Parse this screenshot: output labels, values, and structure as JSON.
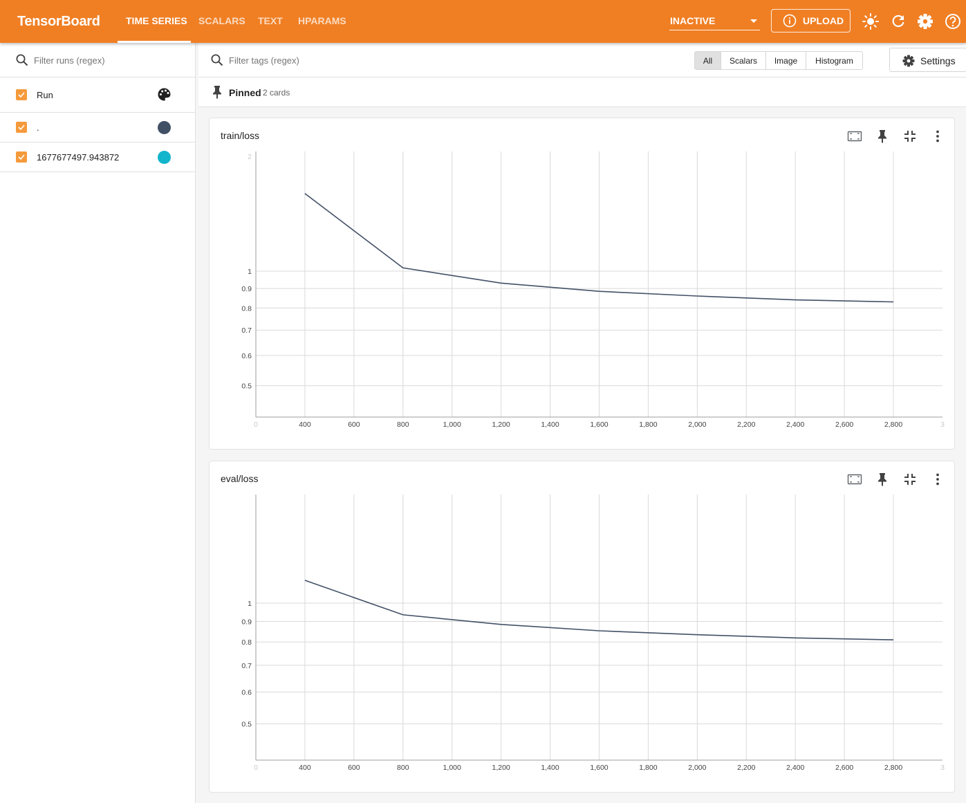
{
  "app": {
    "brand": "TensorBoard",
    "tabs": [
      {
        "label": "TIME SERIES",
        "active": true
      },
      {
        "label": "SCALARS",
        "active": false
      },
      {
        "label": "TEXT",
        "active": false
      },
      {
        "label": "HPARAMS",
        "active": false
      }
    ],
    "status_select": "INACTIVE",
    "upload_label": "UPLOAD",
    "header_icons": [
      "brightness-icon",
      "refresh-icon",
      "settings-gear-icon",
      "help-icon"
    ],
    "colors": {
      "header": "#f07f24",
      "checkbox": "#f59a3c"
    }
  },
  "sidebar": {
    "filter_placeholder": "Filter runs (regex)",
    "header_label": "Run",
    "runs": [
      {
        "name": ".",
        "color": "#425066",
        "checked": true
      },
      {
        "name": "1677677497.943872",
        "color": "#12b5cb",
        "checked": true
      }
    ]
  },
  "toolbar": {
    "filter_placeholder": "Filter tags (regex)",
    "type_filters": [
      "All",
      "Scalars",
      "Image",
      "Histogram"
    ],
    "selected_filter": "All",
    "settings_label": "Settings"
  },
  "pinned": {
    "label": "Pinned",
    "count_text": "2 cards"
  },
  "chart_data": [
    {
      "type": "line",
      "title": "train/loss",
      "x_scale": "linear",
      "y_scale": "log",
      "x_ticks": [
        "0",
        "400",
        "600",
        "800",
        "1,000",
        "1,200",
        "1,400",
        "1,600",
        "1,800",
        "2,000",
        "2,200",
        "2,400",
        "2,600",
        "2,800",
        "3"
      ],
      "y_ticks": [
        "2",
        "1",
        "0.9",
        "0.8",
        "0.7",
        "0.6",
        "0.5"
      ],
      "xlim": [
        200,
        3000
      ],
      "ylim": [
        0.42,
        2
      ],
      "grid": true,
      "series": [
        {
          "color": "#425066",
          "x": [
            400,
            800,
            1200,
            1600,
            2000,
            2400,
            2800
          ],
          "y": [
            1.6,
            1.02,
            0.93,
            0.885,
            0.86,
            0.84,
            0.83
          ]
        }
      ]
    },
    {
      "type": "line",
      "title": "eval/loss",
      "x_scale": "linear",
      "y_scale": "log",
      "x_ticks": [
        "0",
        "400",
        "600",
        "800",
        "1,000",
        "1,200",
        "1,400",
        "1,600",
        "1,800",
        "2,000",
        "2,200",
        "2,400",
        "2,600",
        "2,800",
        "3"
      ],
      "y_ticks": [
        "1",
        "0.9",
        "0.8",
        "0.7",
        "0.6",
        "0.5"
      ],
      "xlim": [
        200,
        3000
      ],
      "ylim": [
        0.42,
        2
      ],
      "grid": true,
      "series": [
        {
          "color": "#425066",
          "x": [
            400,
            800,
            1200,
            1600,
            2000,
            2400,
            2800
          ],
          "y": [
            1.14,
            0.935,
            0.885,
            0.853,
            0.834,
            0.819,
            0.81
          ]
        }
      ]
    }
  ]
}
